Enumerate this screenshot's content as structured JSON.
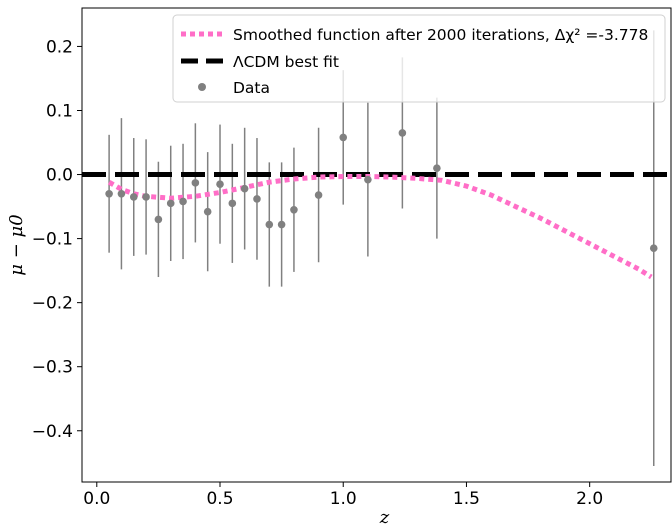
{
  "chart_data": {
    "type": "scatter",
    "xlabel": "z",
    "ylabel": "μ − μ0",
    "xlim": [
      -0.06,
      2.33
    ],
    "ylim": [
      -0.48,
      0.26
    ],
    "xticks": [
      0.0,
      0.5,
      1.0,
      1.5,
      2.0
    ],
    "xtick_labels": [
      "0.0",
      "0.5",
      "1.0",
      "1.5",
      "2.0"
    ],
    "yticks": [
      0.2,
      0.1,
      0.0,
      -0.1,
      -0.2,
      -0.3,
      -0.4
    ],
    "ytick_labels": [
      "0.2",
      "0.1",
      "0.0",
      "−0.1",
      "−0.2",
      "−0.3",
      "−0.4"
    ],
    "grid": false,
    "legend_position": "top-right",
    "series": [
      {
        "name": "Smoothed function after 2000 iterations, Δχ² =-3.778",
        "style": "dotted",
        "color": "#ff6ec7",
        "x": [
          0.05,
          0.1,
          0.15,
          0.2,
          0.3,
          0.4,
          0.5,
          0.6,
          0.7,
          0.8,
          0.9,
          1.0,
          1.1,
          1.2,
          1.3,
          1.4,
          1.5,
          1.6,
          1.7,
          1.8,
          1.9,
          2.0,
          2.1,
          2.2,
          2.25
        ],
        "y": [
          -0.012,
          -0.023,
          -0.03,
          -0.034,
          -0.037,
          -0.034,
          -0.028,
          -0.02,
          -0.012,
          -0.007,
          -0.004,
          -0.003,
          -0.003,
          -0.004,
          -0.006,
          -0.009,
          -0.018,
          -0.032,
          -0.05,
          -0.068,
          -0.088,
          -0.108,
          -0.128,
          -0.148,
          -0.16
        ]
      },
      {
        "name": "ΛCDM best fit",
        "style": "dashed",
        "color": "#000000",
        "x": [
          -0.06,
          2.33
        ],
        "y": [
          0.0,
          0.0
        ]
      },
      {
        "name": "Data",
        "style": "points",
        "color": "#808080",
        "x": [
          0.05,
          0.1,
          0.15,
          0.2,
          0.25,
          0.3,
          0.35,
          0.4,
          0.45,
          0.5,
          0.55,
          0.6,
          0.65,
          0.7,
          0.75,
          0.8,
          0.9,
          1.0,
          1.1,
          1.24,
          1.38,
          2.26
        ],
        "y": [
          -0.03,
          -0.03,
          -0.035,
          -0.035,
          -0.07,
          -0.045,
          -0.042,
          -0.013,
          -0.058,
          -0.015,
          -0.045,
          -0.022,
          -0.038,
          -0.078,
          -0.078,
          -0.055,
          -0.032,
          0.058,
          -0.008,
          0.065,
          0.01,
          -0.115
        ],
        "yerr": [
          0.092,
          0.118,
          0.092,
          0.09,
          0.09,
          0.09,
          0.09,
          0.093,
          0.093,
          0.093,
          0.093,
          0.095,
          0.095,
          0.097,
          0.097,
          0.097,
          0.105,
          0.105,
          0.12,
          0.118,
          0.11,
          0.34
        ]
      }
    ]
  }
}
